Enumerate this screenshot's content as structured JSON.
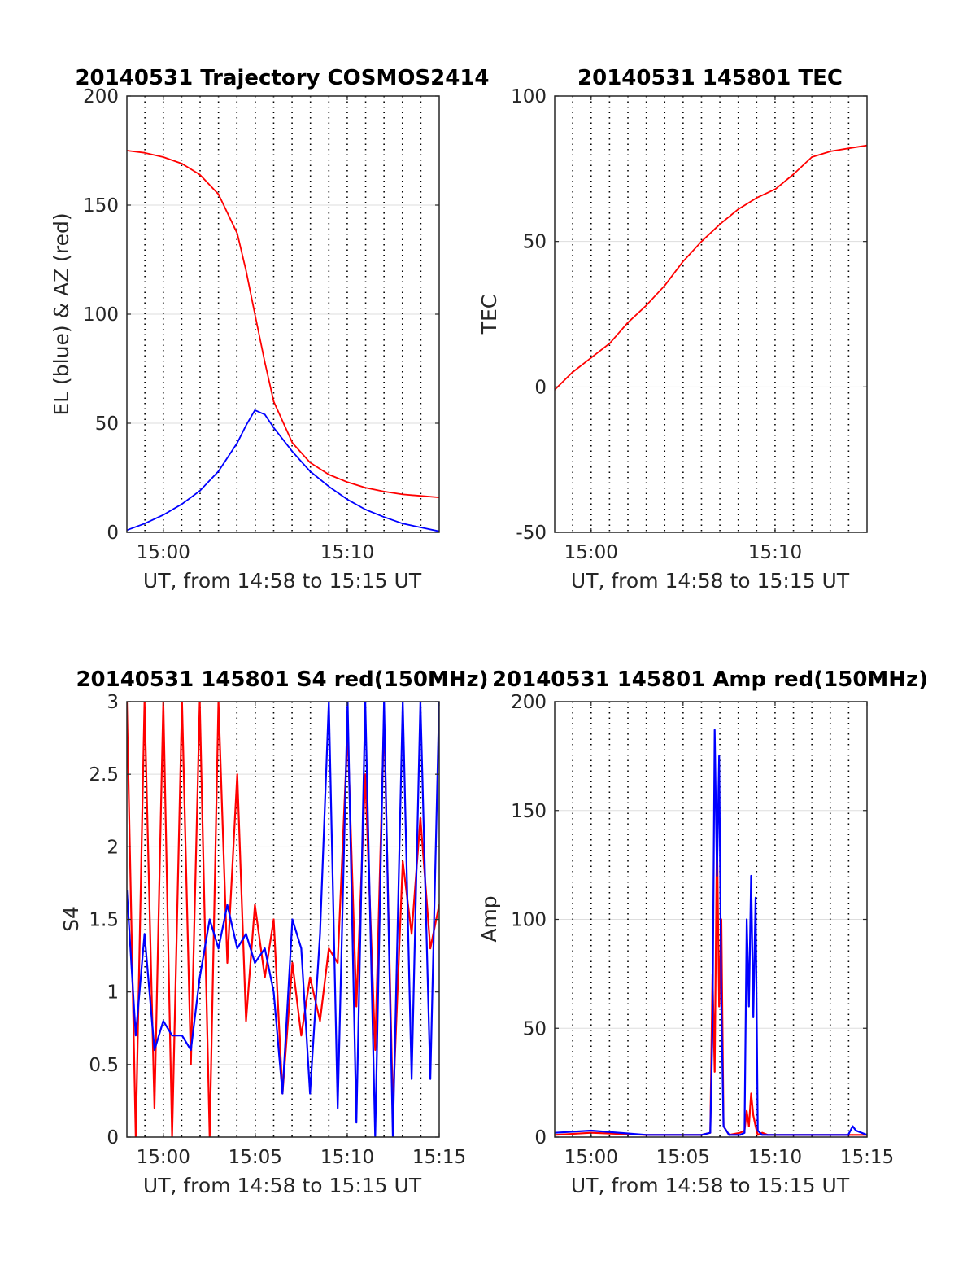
{
  "chart_data": [
    {
      "type": "line",
      "title": "20140531 Trajectory COSMOS2414",
      "xlabel": "UT, from 14:58 to 15:15 UT",
      "ylabel": "EL (blue) & AZ (red)",
      "xlim": [
        14.967,
        15.25
      ],
      "ylim": [
        0,
        200
      ],
      "yticks": [
        0,
        50,
        100,
        150,
        200
      ],
      "xticks": [
        {
          "v": 15.0,
          "label": "15:00"
        },
        {
          "v": 15.1667,
          "label": "15:10"
        }
      ],
      "grid": "horizontal light gray, vertical dotted black",
      "x": [
        14.967,
        14.983,
        15.0,
        15.017,
        15.033,
        15.05,
        15.067,
        15.075,
        15.083,
        15.092,
        15.1,
        15.117,
        15.133,
        15.15,
        15.167,
        15.183,
        15.2,
        15.217,
        15.25
      ],
      "series": [
        {
          "color": "#ff0000",
          "values": [
            175,
            174,
            172,
            169,
            164,
            155,
            137,
            120,
            100,
            78,
            60,
            41,
            32,
            26.5,
            23,
            20.5,
            18.7,
            17.4,
            16
          ]
        },
        {
          "color": "#0000ff",
          "values": [
            1,
            4,
            8,
            13,
            19,
            28,
            41,
            49,
            56,
            54,
            48,
            37,
            28,
            21,
            15,
            10.5,
            7,
            4,
            0.5
          ]
        }
      ]
    },
    {
      "type": "line",
      "title": "20140531 145801 TEC",
      "xlabel": "UT, from 14:58 to 15:15 UT",
      "ylabel": "TEC",
      "xlim": [
        14.967,
        15.25
      ],
      "ylim": [
        -50,
        100
      ],
      "yticks": [
        -50,
        0,
        50,
        100
      ],
      "xticks": [
        {
          "v": 15.0,
          "label": "15:00"
        },
        {
          "v": 15.1667,
          "label": "15:10"
        }
      ],
      "grid": "horizontal light gray, vertical dotted black",
      "x": [
        14.967,
        14.983,
        15.0,
        15.017,
        15.033,
        15.05,
        15.067,
        15.083,
        15.1,
        15.117,
        15.133,
        15.15,
        15.167,
        15.183,
        15.2,
        15.217,
        15.233,
        15.25
      ],
      "series": [
        {
          "color": "#ff0000",
          "values": [
            -1,
            5,
            10,
            15,
            22,
            28,
            35,
            43,
            50,
            56,
            61,
            65,
            68,
            73,
            79,
            81,
            82,
            83
          ]
        }
      ]
    },
    {
      "type": "line",
      "title": "20140531 145801 S4 red(150MHz)",
      "xlabel": "UT, from 14:58 to 15:15 UT",
      "ylabel": "S4",
      "xlim": [
        14.967,
        15.25
      ],
      "ylim": [
        0,
        3
      ],
      "yticks": [
        0,
        0.5,
        1,
        1.5,
        2,
        2.5,
        3
      ],
      "xticks": [
        {
          "v": 15.0,
          "label": "15:00"
        },
        {
          "v": 15.0833,
          "label": "15:05"
        },
        {
          "v": 15.1667,
          "label": "15:10"
        },
        {
          "v": 15.25,
          "label": "15:15"
        }
      ],
      "grid": "horizontal light gray, vertical dotted black",
      "x": [
        14.967,
        14.975,
        14.983,
        14.992,
        15.0,
        15.008,
        15.017,
        15.025,
        15.033,
        15.042,
        15.05,
        15.058,
        15.067,
        15.075,
        15.083,
        15.092,
        15.1,
        15.108,
        15.117,
        15.125,
        15.133,
        15.142,
        15.15,
        15.158,
        15.167,
        15.175,
        15.183,
        15.192,
        15.2,
        15.208,
        15.217,
        15.225,
        15.233,
        15.242,
        15.25
      ],
      "series": [
        {
          "color": "#ff0000",
          "values": [
            3,
            0,
            3,
            0.2,
            3,
            0,
            3,
            0.5,
            3,
            0,
            3,
            1.2,
            2.5,
            0.8,
            1.6,
            1.1,
            1.5,
            0.3,
            1.2,
            0.7,
            1.1,
            0.8,
            1.3,
            1.2,
            2.8,
            0.9,
            2.5,
            0.6,
            2.9,
            0.2,
            1.9,
            1.4,
            2.2,
            1.3,
            1.6
          ]
        },
        {
          "color": "#0000ff",
          "values": [
            1.7,
            0.7,
            1.4,
            0.6,
            0.8,
            0.7,
            0.7,
            0.6,
            1.1,
            1.5,
            1.3,
            1.6,
            1.3,
            1.4,
            1.2,
            1.3,
            1.0,
            0.3,
            1.5,
            1.3,
            0.3,
            1.4,
            3,
            0.2,
            3,
            0.1,
            3,
            0,
            3,
            0,
            3,
            0.4,
            3,
            0.4,
            3
          ]
        }
      ]
    },
    {
      "type": "line",
      "title": "20140531 145801 Amp red(150MHz)",
      "xlabel": "UT, from 14:58 to 15:15 UT",
      "ylabel": "Amp",
      "xlim": [
        14.967,
        15.25
      ],
      "ylim": [
        0,
        200
      ],
      "yticks": [
        0,
        50,
        100,
        150,
        200
      ],
      "xticks": [
        {
          "v": 15.0,
          "label": "15:00"
        },
        {
          "v": 15.0833,
          "label": "15:05"
        },
        {
          "v": 15.1667,
          "label": "15:10"
        },
        {
          "v": 15.25,
          "label": "15:15"
        }
      ],
      "grid": "horizontal light gray, vertical dotted black",
      "x": [
        14.967,
        15.0,
        15.05,
        15.1,
        15.108,
        15.11,
        15.112,
        15.114,
        15.116,
        15.118,
        15.12,
        15.125,
        15.135,
        15.139,
        15.141,
        15.143,
        15.145,
        15.147,
        15.149,
        15.151,
        15.155,
        15.16,
        15.2,
        15.233,
        15.237,
        15.24,
        15.25
      ],
      "series": [
        {
          "color": "#ff0000",
          "values": [
            1,
            2,
            1,
            1,
            2,
            75,
            30,
            140,
            60,
            100,
            5,
            1,
            2,
            3,
            12,
            5,
            20,
            10,
            5,
            1,
            2,
            1,
            1,
            1,
            1,
            1,
            1
          ]
        },
        {
          "color": "#0000ff",
          "values": [
            2,
            3,
            1,
            1,
            2,
            50,
            187,
            120,
            175,
            60,
            5,
            1,
            1,
            2,
            100,
            60,
            120,
            55,
            110,
            3,
            1,
            1,
            1,
            1,
            5,
            3,
            1
          ]
        }
      ]
    }
  ]
}
